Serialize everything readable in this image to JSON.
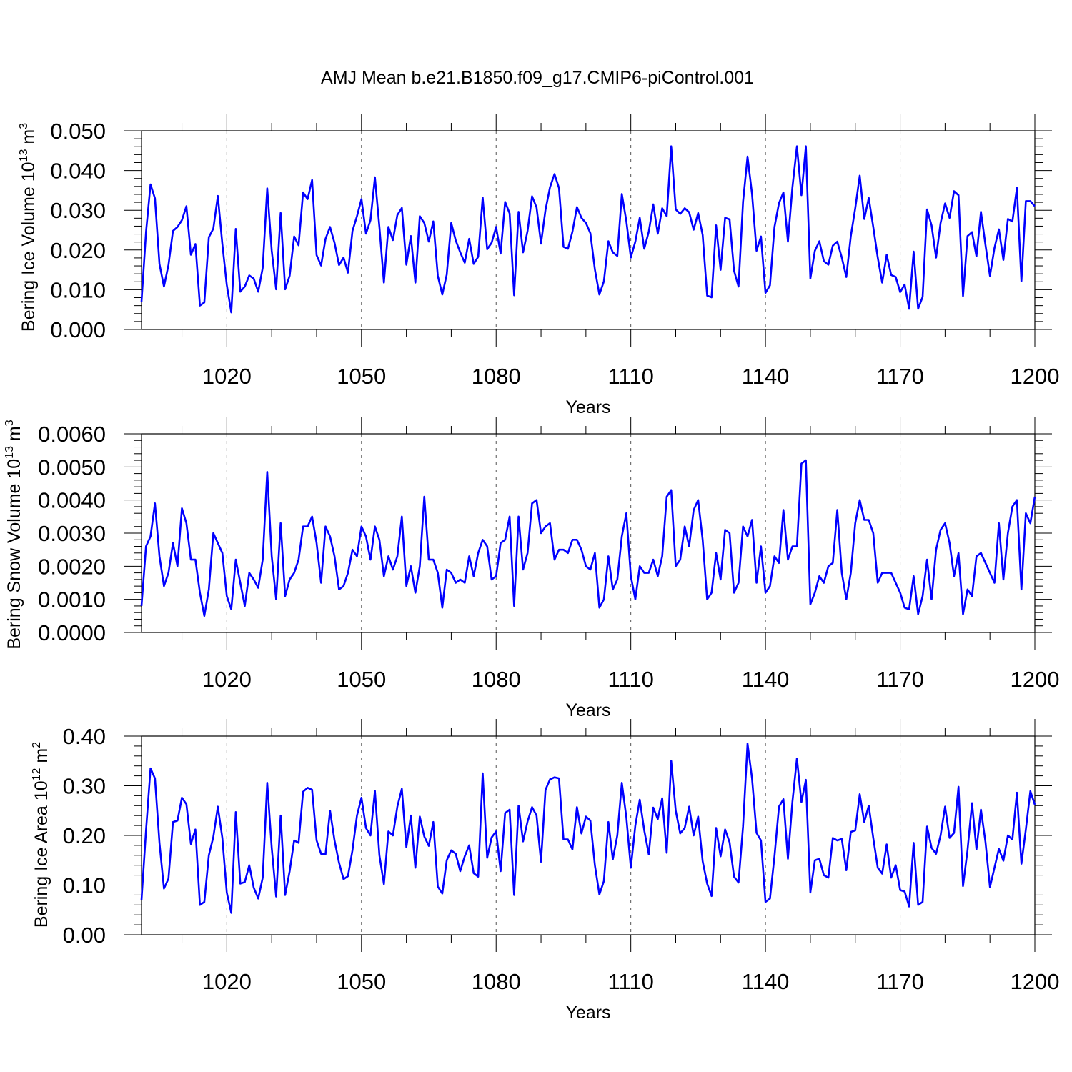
{
  "figure": {
    "title": "AMJ Mean b.e21.B1850.f09_g17.CMIP6-piControl.001"
  },
  "chart_data": [
    {
      "type": "line",
      "title": "AMJ Mean b.e21.B1850.f09_g17.CMIP6-piControl.001",
      "ylabel": "Bering Ice Volume",
      "ylabel_units_base": "10",
      "ylabel_units_exp": "13",
      "ylabel_units_unit": "m",
      "ylabel_units_unit_exp": "3",
      "xlabel": "Years",
      "xlim": [
        1001,
        1200
      ],
      "ylim": [
        0,
        0.05
      ],
      "x_ticks": [
        1020,
        1050,
        1080,
        1110,
        1140,
        1170,
        1200
      ],
      "x_tick_labels": [
        "1020",
        "1050",
        "1080",
        "1110",
        "1140",
        "1170",
        "1200"
      ],
      "y_ticks": [
        0,
        0.01,
        0.02,
        0.03,
        0.04,
        0.05
      ],
      "y_tick_labels": [
        "0.000",
        "0.010",
        "0.020",
        "0.030",
        "0.040",
        "0.050"
      ],
      "grid": "vertical dashed at x ticks",
      "color": "#0000ff",
      "x_start": 1001,
      "x_step": 1,
      "values": [
        0.007,
        0.0245,
        0.0365,
        0.033,
        0.0165,
        0.0108,
        0.0162,
        0.0248,
        0.0258,
        0.0275,
        0.031,
        0.0188,
        0.0215,
        0.006,
        0.0068,
        0.0232,
        0.0254,
        0.0336,
        0.0215,
        0.0112,
        0.0043,
        0.0253,
        0.0095,
        0.0108,
        0.0136,
        0.0128,
        0.0095,
        0.0155,
        0.0355,
        0.0198,
        0.0101,
        0.0293,
        0.0101,
        0.0135,
        0.0234,
        0.0212,
        0.0345,
        0.0328,
        0.0376,
        0.0187,
        0.0161,
        0.0228,
        0.0258,
        0.0218,
        0.0162,
        0.0181,
        0.0143,
        0.0248,
        0.0285,
        0.0328,
        0.0241,
        0.0275,
        0.0383,
        0.0258,
        0.0118,
        0.0258,
        0.0225,
        0.0288,
        0.0306,
        0.0163,
        0.0235,
        0.0118,
        0.0285,
        0.0268,
        0.0221,
        0.0272,
        0.0135,
        0.0088,
        0.0138,
        0.0268,
        0.0224,
        0.0194,
        0.0168,
        0.0228,
        0.0165,
        0.0183,
        0.0332,
        0.0202,
        0.0218,
        0.0258,
        0.0191,
        0.0321,
        0.0292,
        0.0086,
        0.0296,
        0.0194,
        0.0248,
        0.0335,
        0.0307,
        0.0216,
        0.0301,
        0.0358,
        0.0391,
        0.0356,
        0.0208,
        0.0203,
        0.0246,
        0.0308,
        0.0281,
        0.0268,
        0.0242,
        0.0151,
        0.0088,
        0.0121,
        0.0222,
        0.0194,
        0.0185,
        0.0341,
        0.0273,
        0.0181,
        0.0221,
        0.0281,
        0.0203,
        0.0246,
        0.0315,
        0.0241,
        0.0305,
        0.0285,
        0.0461,
        0.0302,
        0.0291,
        0.0305,
        0.0295,
        0.0251,
        0.0293,
        0.0238,
        0.0085,
        0.0081,
        0.0262,
        0.015,
        0.0281,
        0.0277,
        0.0148,
        0.0108,
        0.0321,
        0.0435,
        0.0341,
        0.0198,
        0.0234,
        0.0092,
        0.0111,
        0.0258,
        0.0318,
        0.0345,
        0.0221,
        0.0358,
        0.0461,
        0.0338,
        0.0461,
        0.0128,
        0.0198,
        0.0222,
        0.0172,
        0.0163,
        0.0211,
        0.0221,
        0.0181,
        0.0132,
        0.0235,
        0.0305,
        0.0387,
        0.0278,
        0.0331,
        0.0258,
        0.0181,
        0.0118,
        0.0188,
        0.0137,
        0.0132,
        0.0094,
        0.0113,
        0.0052,
        0.0196,
        0.0052,
        0.0082,
        0.0302,
        0.0262,
        0.0181,
        0.0268,
        0.0317,
        0.0281,
        0.0348,
        0.0338,
        0.0084,
        0.0235,
        0.0245,
        0.0184,
        0.0296,
        0.0213,
        0.0135,
        0.0205,
        0.0252,
        0.0175,
        0.0278,
        0.0272,
        0.0356,
        0.0121,
        0.0323,
        0.0323,
        0.031
      ]
    },
    {
      "type": "line",
      "ylabel": "Bering Snow Volume",
      "ylabel_units_base": "10",
      "ylabel_units_exp": "13",
      "ylabel_units_unit": "m",
      "ylabel_units_unit_exp": "3",
      "xlabel": "Years",
      "xlim": [
        1001,
        1200
      ],
      "ylim": [
        0,
        0.006
      ],
      "x_ticks": [
        1020,
        1050,
        1080,
        1110,
        1140,
        1170,
        1200
      ],
      "x_tick_labels": [
        "1020",
        "1050",
        "1080",
        "1110",
        "1140",
        "1170",
        "1200"
      ],
      "y_ticks": [
        0,
        0.001,
        0.002,
        0.003,
        0.004,
        0.005,
        0.006
      ],
      "y_tick_labels": [
        "0.0000",
        "0.0010",
        "0.0020",
        "0.0030",
        "0.0040",
        "0.0050",
        "0.0060"
      ],
      "grid": "vertical dashed at x ticks",
      "color": "#0000ff",
      "x_start": 1001,
      "x_step": 1,
      "values": [
        0.0008,
        0.0026,
        0.0029,
        0.0039,
        0.0023,
        0.0014,
        0.0018,
        0.0027,
        0.002,
        0.00375,
        0.0033,
        0.0022,
        0.0022,
        0.0012,
        0.0005,
        0.0013,
        0.003,
        0.0027,
        0.0024,
        0.0011,
        0.0007,
        0.0022,
        0.0015,
        0.0008,
        0.0018,
        0.0016,
        0.00135,
        0.0022,
        0.00485,
        0.0023,
        0.001,
        0.0033,
        0.0011,
        0.0016,
        0.0018,
        0.0022,
        0.0032,
        0.0032,
        0.0035,
        0.0027,
        0.0015,
        0.0032,
        0.0029,
        0.0023,
        0.0013,
        0.0014,
        0.0018,
        0.0025,
        0.0023,
        0.0032,
        0.0029,
        0.0022,
        0.0032,
        0.0028,
        0.0017,
        0.0023,
        0.0019,
        0.0023,
        0.0035,
        0.0014,
        0.002,
        0.0012,
        0.002,
        0.0041,
        0.0022,
        0.0022,
        0.0018,
        0.00075,
        0.0019,
        0.0018,
        0.0015,
        0.0016,
        0.0015,
        0.0023,
        0.0017,
        0.0024,
        0.0028,
        0.0026,
        0.0016,
        0.0017,
        0.0027,
        0.0028,
        0.0035,
        0.0008,
        0.0035,
        0.0019,
        0.0024,
        0.0039,
        0.004,
        0.003,
        0.0032,
        0.0033,
        0.0022,
        0.0025,
        0.0025,
        0.0024,
        0.0028,
        0.0028,
        0.0025,
        0.002,
        0.0019,
        0.0024,
        0.00075,
        0.001,
        0.0023,
        0.0013,
        0.0016,
        0.0029,
        0.0036,
        0.0017,
        0.001,
        0.002,
        0.0018,
        0.0018,
        0.0022,
        0.0017,
        0.0023,
        0.0041,
        0.0043,
        0.002,
        0.0022,
        0.0032,
        0.0026,
        0.0037,
        0.004,
        0.0028,
        0.001,
        0.0012,
        0.0024,
        0.0016,
        0.0031,
        0.003,
        0.0012,
        0.0015,
        0.0032,
        0.0029,
        0.0034,
        0.0015,
        0.0026,
        0.0012,
        0.0014,
        0.0023,
        0.0021,
        0.0037,
        0.0022,
        0.0026,
        0.0026,
        0.0051,
        0.0052,
        0.00085,
        0.0012,
        0.0017,
        0.0015,
        0.002,
        0.0021,
        0.0037,
        0.0018,
        0.001,
        0.0018,
        0.0033,
        0.004,
        0.0034,
        0.0034,
        0.003,
        0.0015,
        0.0018,
        0.0018,
        0.0018,
        0.0015,
        0.0012,
        0.00075,
        0.0007,
        0.0017,
        0.00055,
        0.0011,
        0.0022,
        0.001,
        0.0025,
        0.0031,
        0.0033,
        0.0027,
        0.0017,
        0.0024,
        0.00055,
        0.0013,
        0.0011,
        0.0023,
        0.0024,
        0.0021,
        0.0018,
        0.0015,
        0.0033,
        0.0016,
        0.003,
        0.0038,
        0.004,
        0.0013,
        0.0036,
        0.0033,
        0.0041
      ]
    },
    {
      "type": "line",
      "ylabel": "Bering Ice Area",
      "ylabel_units_base": "10",
      "ylabel_units_exp": "12",
      "ylabel_units_unit": "m",
      "ylabel_units_unit_exp": "2",
      "xlabel": "Years",
      "xlim": [
        1001,
        1200
      ],
      "ylim": [
        0,
        0.4
      ],
      "x_ticks": [
        1020,
        1050,
        1080,
        1110,
        1140,
        1170,
        1200
      ],
      "x_tick_labels": [
        "1020",
        "1050",
        "1080",
        "1110",
        "1140",
        "1170",
        "1200"
      ],
      "y_ticks": [
        0,
        0.1,
        0.2,
        0.3,
        0.4
      ],
      "y_tick_labels": [
        "0.00",
        "0.10",
        "0.20",
        "0.30",
        "0.40"
      ],
      "grid": "vertical dashed at x ticks",
      "color": "#0000ff",
      "x_start": 1001,
      "x_step": 1,
      "values": [
        0.07,
        0.21,
        0.335,
        0.315,
        0.185,
        0.093,
        0.113,
        0.227,
        0.23,
        0.276,
        0.263,
        0.183,
        0.212,
        0.06,
        0.066,
        0.16,
        0.197,
        0.258,
        0.195,
        0.085,
        0.044,
        0.247,
        0.103,
        0.106,
        0.14,
        0.095,
        0.073,
        0.115,
        0.306,
        0.175,
        0.077,
        0.24,
        0.08,
        0.128,
        0.19,
        0.185,
        0.288,
        0.296,
        0.292,
        0.19,
        0.163,
        0.162,
        0.25,
        0.19,
        0.145,
        0.112,
        0.118,
        0.17,
        0.24,
        0.276,
        0.215,
        0.2,
        0.29,
        0.16,
        0.102,
        0.208,
        0.2,
        0.258,
        0.294,
        0.176,
        0.24,
        0.135,
        0.238,
        0.198,
        0.179,
        0.227,
        0.097,
        0.083,
        0.15,
        0.17,
        0.163,
        0.128,
        0.158,
        0.18,
        0.124,
        0.117,
        0.325,
        0.155,
        0.196,
        0.208,
        0.128,
        0.245,
        0.252,
        0.08,
        0.26,
        0.188,
        0.228,
        0.257,
        0.24,
        0.147,
        0.292,
        0.313,
        0.317,
        0.315,
        0.192,
        0.192,
        0.172,
        0.257,
        0.204,
        0.238,
        0.23,
        0.14,
        0.081,
        0.108,
        0.227,
        0.152,
        0.2,
        0.306,
        0.237,
        0.135,
        0.22,
        0.272,
        0.21,
        0.162,
        0.256,
        0.233,
        0.275,
        0.165,
        0.35,
        0.25,
        0.204,
        0.215,
        0.258,
        0.2,
        0.238,
        0.148,
        0.103,
        0.078,
        0.215,
        0.158,
        0.212,
        0.186,
        0.117,
        0.105,
        0.218,
        0.385,
        0.315,
        0.205,
        0.19,
        0.066,
        0.073,
        0.158,
        0.258,
        0.273,
        0.153,
        0.268,
        0.355,
        0.267,
        0.312,
        0.085,
        0.15,
        0.153,
        0.12,
        0.115,
        0.195,
        0.19,
        0.193,
        0.13,
        0.207,
        0.21,
        0.283,
        0.227,
        0.26,
        0.195,
        0.135,
        0.123,
        0.182,
        0.115,
        0.14,
        0.09,
        0.087,
        0.057,
        0.185,
        0.06,
        0.066,
        0.218,
        0.175,
        0.163,
        0.2,
        0.258,
        0.195,
        0.205,
        0.298,
        0.098,
        0.17,
        0.265,
        0.172,
        0.252,
        0.187,
        0.096,
        0.135,
        0.173,
        0.149,
        0.2,
        0.192,
        0.286,
        0.143,
        0.212,
        0.289,
        0.262
      ]
    }
  ]
}
